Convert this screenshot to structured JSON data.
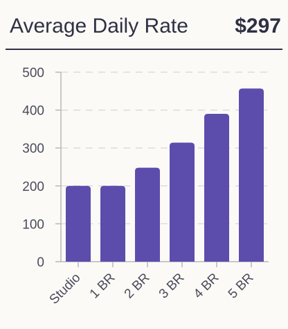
{
  "header": {
    "title": "Average Daily Rate",
    "kpi": "$297"
  },
  "chart_data": {
    "type": "bar",
    "categories": [
      "Studio",
      "1 BR",
      "2 BR",
      "3 BR",
      "4 BR",
      "5 BR"
    ],
    "values": [
      200,
      200,
      248,
      314,
      390,
      457
    ],
    "yticks": [
      0,
      100,
      200,
      300,
      400,
      500
    ],
    "ylim": [
      0,
      500
    ],
    "grid": "horizontal dashed",
    "legend": "none",
    "bar_color": "#5c4dac"
  }
}
